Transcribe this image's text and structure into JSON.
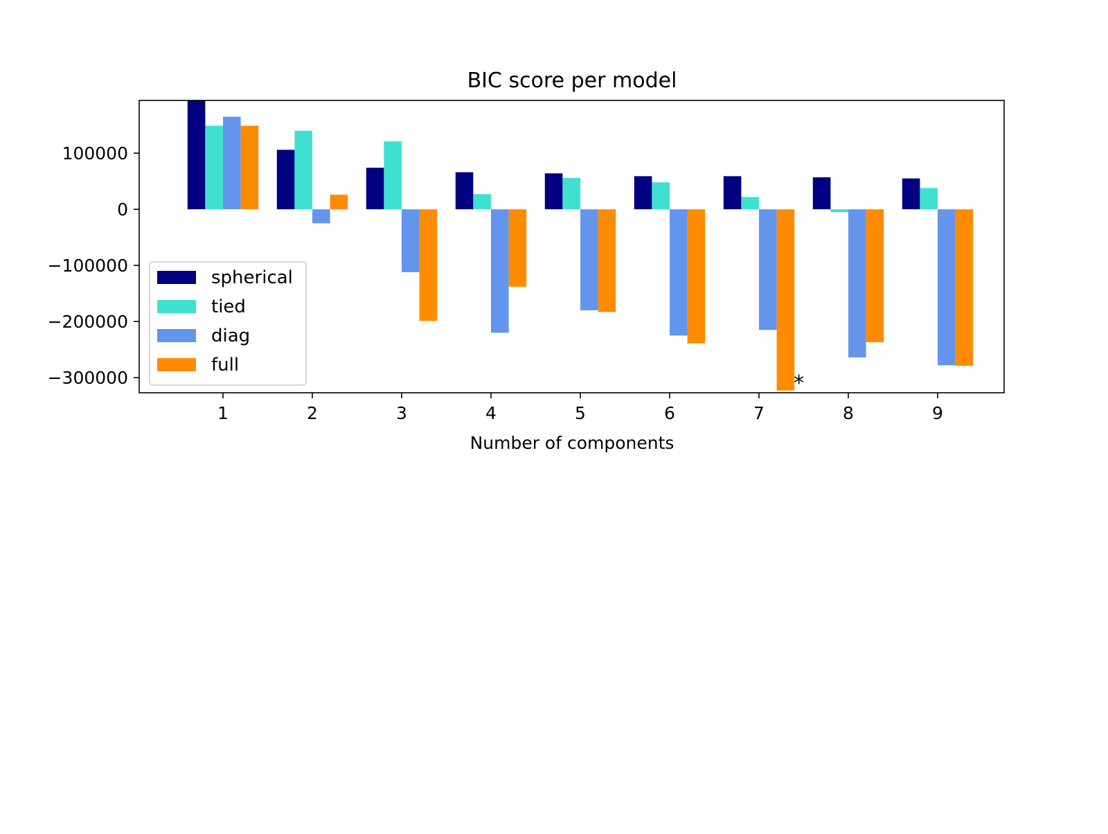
{
  "chart_data": {
    "type": "bar",
    "title": "BIC score per model",
    "xlabel": "Number of components",
    "ylabel": "",
    "categories": [
      "1",
      "2",
      "3",
      "4",
      "5",
      "6",
      "7",
      "8",
      "9"
    ],
    "series": [
      {
        "name": "spherical",
        "color": "#000080",
        "values": [
          195000,
          106000,
          74000,
          66000,
          64000,
          59000,
          59000,
          57000,
          55000
        ]
      },
      {
        "name": "tied",
        "color": "#40e0d0",
        "values": [
          149000,
          140000,
          121000,
          27000,
          56000,
          48000,
          22000,
          -5000,
          38000
        ]
      },
      {
        "name": "diag",
        "color": "#6495ed",
        "values": [
          165000,
          -25000,
          -112000,
          -220000,
          -180000,
          -225000,
          -215000,
          -264000,
          -278000
        ]
      },
      {
        "name": "full",
        "color": "#ff8c00",
        "values": [
          149000,
          26000,
          -199000,
          -138000,
          -183000,
          -239000,
          -323000,
          -237000,
          -279000
        ]
      }
    ],
    "ylim": [
      -327000,
      194000
    ],
    "yticks": [
      -300000,
      -200000,
      -100000,
      0,
      100000
    ],
    "ytick_labels": [
      "−300000",
      "−200000",
      "−100000",
      "0",
      "100000"
    ],
    "grid": false,
    "legend_position": "lower-left",
    "annotation": {
      "text": "*",
      "category": "7",
      "series": "full"
    }
  }
}
